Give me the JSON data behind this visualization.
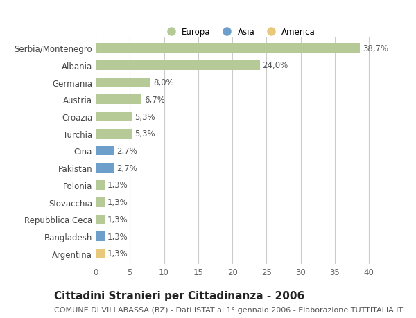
{
  "categories": [
    "Serbia/Montenegro",
    "Albania",
    "Germania",
    "Austria",
    "Croazia",
    "Turchia",
    "Cina",
    "Pakistan",
    "Polonia",
    "Slovacchia",
    "Repubblica Ceca",
    "Bangladesh",
    "Argentina"
  ],
  "values": [
    38.7,
    24.0,
    8.0,
    6.7,
    5.3,
    5.3,
    2.7,
    2.7,
    1.3,
    1.3,
    1.3,
    1.3,
    1.3
  ],
  "bar_colors": [
    "#b5ca96",
    "#b5ca96",
    "#b5ca96",
    "#b5ca96",
    "#b5ca96",
    "#b5ca96",
    "#6e9fcb",
    "#6e9fcb",
    "#b5ca96",
    "#b5ca96",
    "#b5ca96",
    "#6e9fcb",
    "#e8c87a"
  ],
  "labels": [
    "38,7%",
    "24,0%",
    "8,0%",
    "6,7%",
    "5,3%",
    "5,3%",
    "2,7%",
    "2,7%",
    "1,3%",
    "1,3%",
    "1,3%",
    "1,3%",
    "1,3%"
  ],
  "legend": [
    {
      "label": "Europa",
      "color": "#b5ca96"
    },
    {
      "label": "Asia",
      "color": "#6e9fcb"
    },
    {
      "label": "America",
      "color": "#e8c87a"
    }
  ],
  "title": "Cittadini Stranieri per Cittadinanza - 2006",
  "subtitle": "COMUNE DI VILLABASSA (BZ) - Dati ISTAT al 1° gennaio 2006 - Elaborazione TUTTITALIA.IT",
  "xlim": [
    0,
    42
  ],
  "xticks": [
    0,
    5,
    10,
    15,
    20,
    25,
    30,
    35,
    40
  ],
  "background_color": "#ffffff",
  "grid_color": "#cccccc",
  "bar_height": 0.55,
  "label_fontsize": 8.5,
  "tick_fontsize": 8.5,
  "title_fontsize": 11,
  "subtitle_fontsize": 8
}
